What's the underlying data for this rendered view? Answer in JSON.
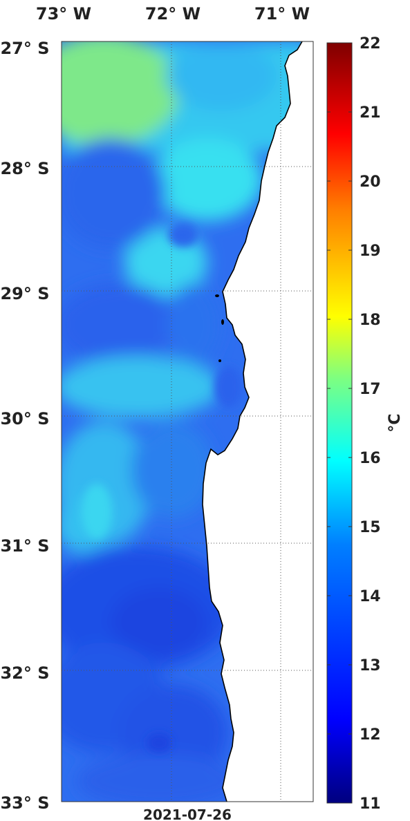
{
  "map": {
    "date_label": "2021-07-26",
    "lon_labels": [
      "73° W",
      "72° W",
      "71° W"
    ],
    "lat_labels": [
      "27° S",
      "28° S",
      "29° S",
      "30° S",
      "31° S",
      "32° S",
      "33° S"
    ]
  },
  "colorbar": {
    "unit": "°C",
    "min": 11,
    "max": 22,
    "ticks": [
      "11",
      "12",
      "13",
      "14",
      "15",
      "16",
      "17",
      "18",
      "19",
      "20",
      "21",
      "22"
    ],
    "stops": [
      "#00007f",
      "#0000ff",
      "#007fff",
      "#00ffff",
      "#7fff7f",
      "#ffff00",
      "#ff7f00",
      "#ff0000",
      "#7f0000"
    ]
  },
  "colors": {
    "cold": "#1f4fe6",
    "mid": "#2e8cf0",
    "warm": "#38e0f0",
    "warmest": "#7ee88a",
    "land": "#ffffff",
    "coast": "#000000"
  }
}
